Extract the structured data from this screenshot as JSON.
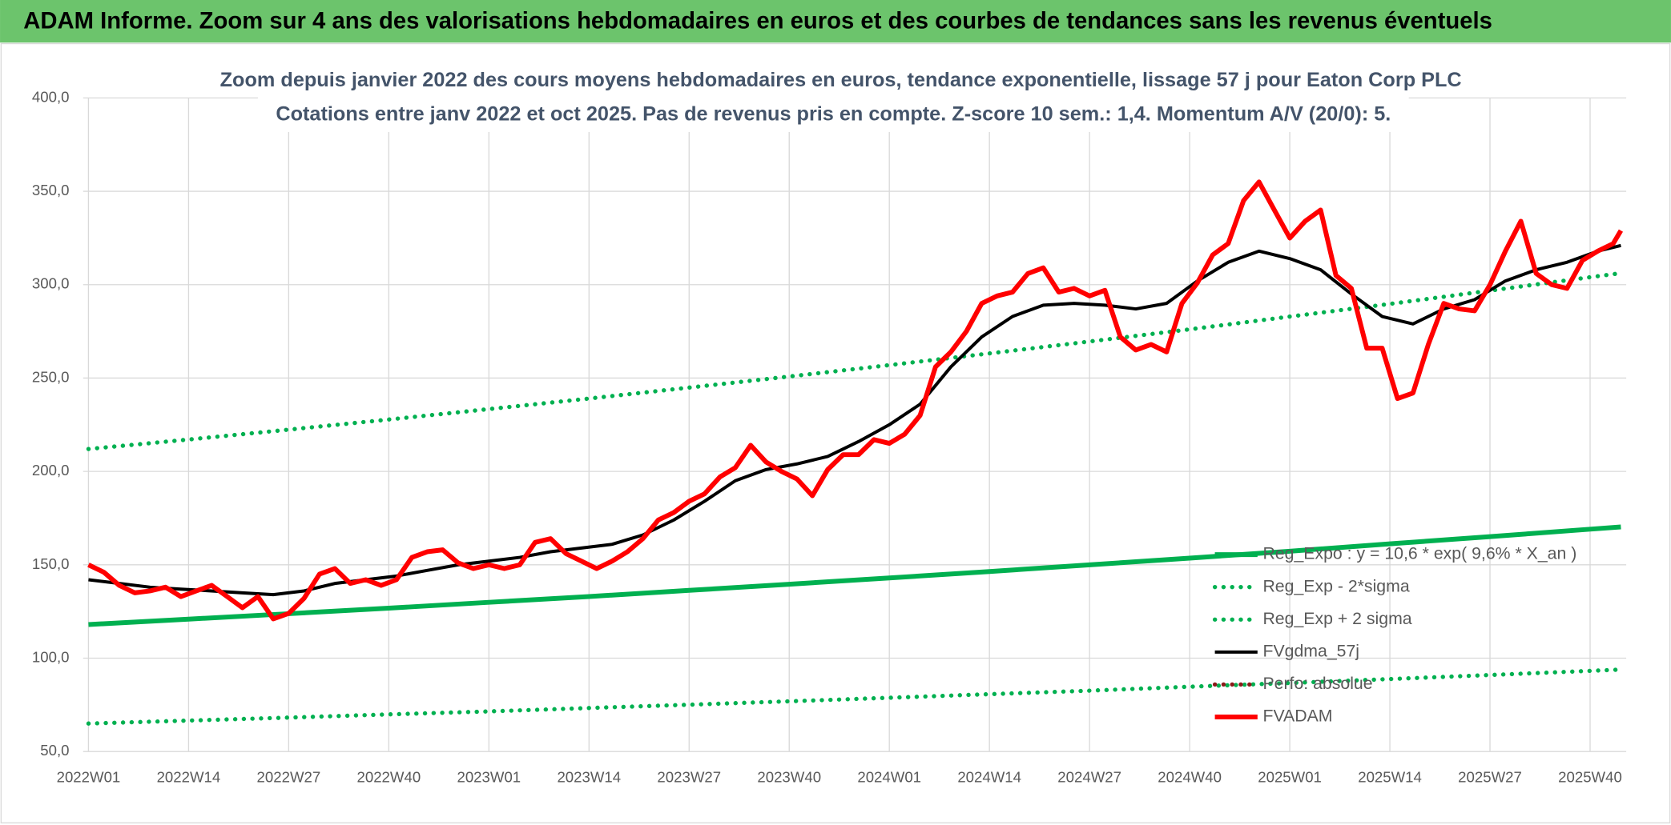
{
  "chart_data": {
    "type": "line",
    "banner": "ADAM Informe. Zoom sur 4 ans des valorisations hebdomadaires en euros et des courbes de tendances sans les revenus éventuels",
    "title": "Zoom depuis janvier 2022 des cours moyens hebdomadaires en euros, tendance exponentielle, lissage 57 j pour Eaton Corp PLC",
    "subtitle": "Cotations entre janv 2022 et oct 2025. Pas de revenus pris en compte. Z-score 10 sem.: 1,4. Momentum A/V (20/0): 5.",
    "xlim": [
      0,
      199
    ],
    "xticks": [
      {
        "value": 0,
        "label": "2022W01"
      },
      {
        "value": 13,
        "label": "2022W14"
      },
      {
        "value": 26,
        "label": "2022W27"
      },
      {
        "value": 39,
        "label": "2022W40"
      },
      {
        "value": 52,
        "label": "2023W01"
      },
      {
        "value": 65,
        "label": "2023W14"
      },
      {
        "value": 78,
        "label": "2023W27"
      },
      {
        "value": 91,
        "label": "2023W40"
      },
      {
        "value": 104,
        "label": "2024W01"
      },
      {
        "value": 117,
        "label": "2024W14"
      },
      {
        "value": 130,
        "label": "2024W27"
      },
      {
        "value": 143,
        "label": "2024W40"
      },
      {
        "value": 156,
        "label": "2025W01"
      },
      {
        "value": 169,
        "label": "2025W14"
      },
      {
        "value": 182,
        "label": "2025W27"
      },
      {
        "value": 195,
        "label": "2025W40"
      }
    ],
    "ylim": [
      50,
      400
    ],
    "yticks": [
      {
        "value": 50,
        "label": "50,0"
      },
      {
        "value": 100,
        "label": "100,0"
      },
      {
        "value": 150,
        "label": "150,0"
      },
      {
        "value": 200,
        "label": "200,0"
      },
      {
        "value": 250,
        "label": "250,0"
      },
      {
        "value": 300,
        "label": "300,0"
      },
      {
        "value": 350,
        "label": "350,0"
      },
      {
        "value": 400,
        "label": "400,0"
      }
    ],
    "grid": true,
    "series": [
      {
        "name": "Reg_Expo : y = 10,6 * exp( 9,6% *  X_an )",
        "color": "#00b050",
        "style": "solid",
        "x": [
          0,
          13,
          26,
          39,
          52,
          65,
          78,
          91,
          104,
          117,
          130,
          143,
          156,
          169,
          182,
          195,
          199
        ],
        "values": [
          118,
          120.9,
          123.8,
          126.8,
          129.9,
          133.0,
          136.3,
          139.6,
          143.0,
          146.4,
          150.0,
          153.6,
          157.3,
          161.2,
          165.1,
          169.1,
          170.3
        ]
      },
      {
        "name": "Reg_Exp - 2*sigma",
        "color": "#00b050",
        "style": "dotted",
        "x": [
          0,
          13,
          26,
          39,
          52,
          65,
          78,
          91,
          104,
          117,
          130,
          143,
          156,
          169,
          182,
          195,
          199
        ],
        "values": [
          65,
          66.6,
          68.2,
          69.9,
          71.5,
          73.3,
          75.1,
          76.9,
          78.8,
          80.7,
          82.6,
          84.7,
          86.7,
          88.8,
          91.0,
          93.2,
          93.9
        ]
      },
      {
        "name": "Reg_Exp + 2 sigma",
        "color": "#00b050",
        "style": "dotted",
        "x": [
          0,
          13,
          26,
          39,
          52,
          65,
          78,
          91,
          104,
          117,
          130,
          143,
          156,
          169,
          182,
          195,
          199
        ],
        "values": [
          212,
          217.1,
          222.4,
          227.8,
          233.4,
          239.0,
          244.9,
          250.8,
          256.9,
          263.2,
          269.6,
          276.1,
          282.9,
          289.7,
          296.8,
          304.0,
          306.2
        ]
      },
      {
        "name": "FVgdma_57j",
        "color": "#000000",
        "style": "solid",
        "x": [
          0,
          4,
          8,
          12,
          16,
          20,
          24,
          28,
          32,
          36,
          40,
          44,
          48,
          52,
          56,
          60,
          64,
          68,
          72,
          76,
          80,
          84,
          88,
          92,
          96,
          100,
          104,
          108,
          112,
          116,
          120,
          124,
          128,
          132,
          136,
          140,
          144,
          148,
          152,
          156,
          160,
          164,
          168,
          172,
          176,
          180,
          184,
          188,
          192,
          196,
          199
        ],
        "values": [
          142,
          140,
          138,
          137,
          136,
          135,
          134,
          136,
          140,
          142,
          144,
          147,
          150,
          152,
          154,
          157,
          159,
          161,
          166,
          174,
          184,
          195,
          201,
          204,
          208,
          216,
          225,
          236,
          256,
          272,
          283,
          289,
          290,
          289,
          287,
          290,
          302,
          312,
          318,
          314,
          308,
          295,
          283,
          279,
          287,
          292,
          302,
          308,
          312,
          318,
          321
        ]
      },
      {
        "name": "Perfo: absolue",
        "color": "#8b1a1a",
        "style": "dotted",
        "x": [],
        "values": []
      },
      {
        "name": "FVADAM",
        "color": "#ff0000",
        "style": "thick",
        "x": [
          0,
          2,
          4,
          6,
          8,
          10,
          12,
          14,
          16,
          18,
          20,
          22,
          24,
          26,
          28,
          30,
          32,
          34,
          36,
          38,
          40,
          42,
          44,
          46,
          48,
          50,
          52,
          54,
          56,
          58,
          60,
          62,
          64,
          66,
          68,
          70,
          72,
          74,
          76,
          78,
          80,
          82,
          84,
          86,
          88,
          90,
          92,
          94,
          96,
          98,
          100,
          102,
          104,
          106,
          108,
          110,
          112,
          114,
          116,
          118,
          120,
          122,
          124,
          126,
          128,
          130,
          132,
          134,
          136,
          138,
          140,
          142,
          144,
          146,
          148,
          150,
          152,
          154,
          156,
          158,
          160,
          162,
          164,
          166,
          168,
          170,
          172,
          174,
          176,
          178,
          180,
          182,
          184,
          186,
          188,
          190,
          192,
          194,
          196,
          198,
          199
        ],
        "values": [
          150,
          146,
          139,
          135,
          136,
          138,
          133,
          136,
          139,
          133,
          127,
          133,
          121,
          124,
          132,
          145,
          148,
          140,
          142,
          139,
          142,
          154,
          157,
          158,
          151,
          148,
          150,
          148,
          150,
          162,
          164,
          156,
          152,
          148,
          152,
          157,
          164,
          174,
          178,
          184,
          188,
          197,
          202,
          214,
          205,
          200,
          196,
          187,
          201,
          209,
          209,
          217,
          215,
          220,
          230,
          256,
          264,
          275,
          290,
          294,
          296,
          306,
          309,
          296,
          298,
          294,
          297,
          272,
          265,
          268,
          264,
          290,
          301,
          316,
          322,
          345,
          355,
          340,
          325,
          334,
          340,
          305,
          298,
          266,
          266,
          239,
          242,
          268,
          290,
          287,
          286,
          300,
          318,
          334,
          306,
          300,
          298,
          313,
          318,
          322,
          329
        ]
      }
    ]
  }
}
